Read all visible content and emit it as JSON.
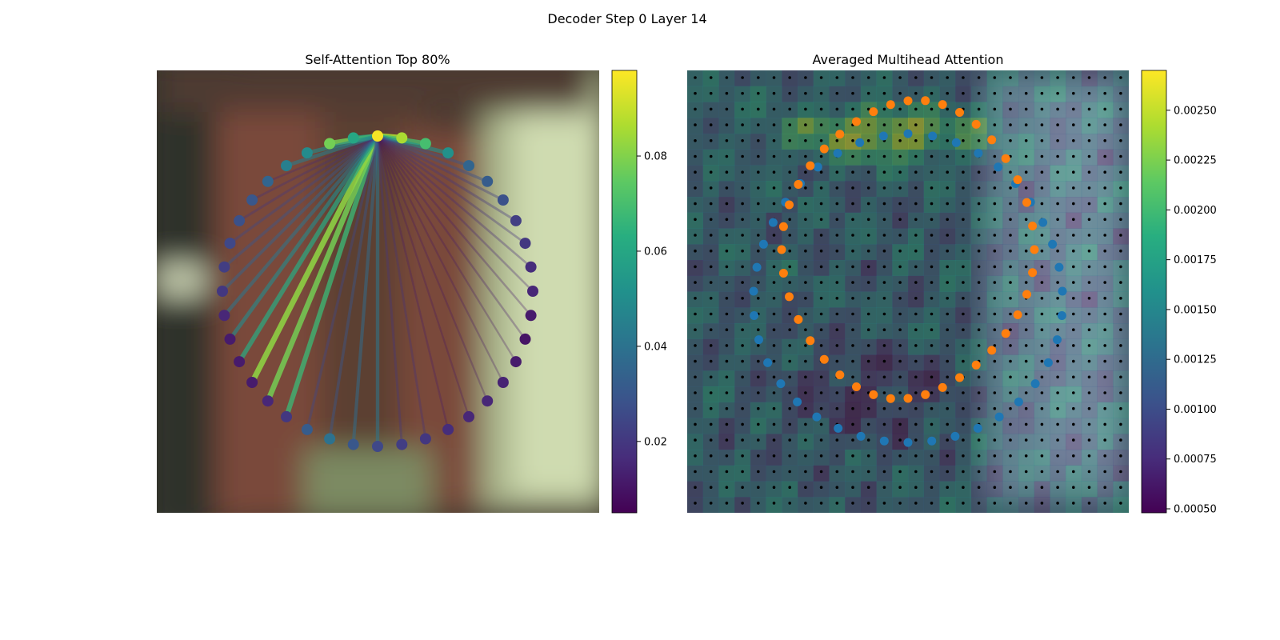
{
  "figure": {
    "title": "Decoder Step 0 Layer 14"
  },
  "chart_data": [
    {
      "type": "scatter",
      "title": "Self-Attention Top 80%",
      "description_points": "40 contour points arranged on a ring; point color = attention weight; lines from the top point to others, colored by weight",
      "colormap": "viridis",
      "colorbar": {
        "range": [
          0.005,
          0.098
        ],
        "ticks": [
          "0.02",
          "0.04",
          "0.06",
          "0.08"
        ],
        "tick_values": [
          0.02,
          0.04,
          0.06,
          0.08
        ]
      },
      "points_weights": [
        0.097,
        0.086,
        0.07,
        0.052,
        0.035,
        0.032,
        0.028,
        0.022,
        0.02,
        0.017,
        0.015,
        0.012,
        0.01,
        0.012,
        0.014,
        0.015,
        0.015,
        0.017,
        0.02,
        0.022,
        0.025,
        0.03,
        0.04,
        0.032,
        0.02,
        0.015,
        0.012,
        0.012,
        0.012,
        0.015,
        0.02,
        0.022,
        0.025,
        0.028,
        0.03,
        0.035,
        0.045,
        0.05,
        0.078,
        0.06
      ],
      "line_targets": [
        1,
        2,
        3,
        38,
        39,
        24,
        25,
        26,
        27,
        28,
        29,
        30,
        31,
        32,
        33,
        34,
        35,
        36,
        37,
        20,
        21,
        22,
        23,
        19,
        18,
        17,
        16,
        15,
        14,
        13,
        12,
        4,
        5,
        6,
        7,
        8,
        9,
        10,
        11
      ],
      "line_weights": [
        0.086,
        0.07,
        0.052,
        0.078,
        0.06,
        0.068,
        0.078,
        0.082,
        0.062,
        0.05,
        0.042,
        0.035,
        0.03,
        0.025,
        0.02,
        0.018,
        0.015,
        0.045,
        0.05,
        0.042,
        0.038,
        0.03,
        0.025,
        0.02,
        0.018,
        0.012,
        0.01,
        0.01,
        0.01,
        0.01,
        0.012,
        0.03,
        0.028,
        0.022,
        0.02,
        0.018,
        0.016,
        0.014,
        0.012
      ]
    },
    {
      "type": "heatmap",
      "title": "Averaged Multihead Attention",
      "grid_size": [
        28,
        28
      ],
      "colormap": "viridis",
      "colorbar": {
        "range": [
          0.00048,
          0.0027
        ],
        "ticks": [
          "0.00050",
          "0.00075",
          "0.00100",
          "0.00125",
          "0.00150",
          "0.00175",
          "0.00200",
          "0.00225",
          "0.00250"
        ],
        "tick_values": [
          0.0005,
          0.00075,
          0.001,
          0.00125,
          0.0015,
          0.00175,
          0.002,
          0.00225,
          0.0025
        ]
      },
      "series": [
        {
          "name": "",
          "color": "#1f77b4"
        },
        {
          "name": "",
          "color": "#ff7f0e"
        },
        {
          "name": "",
          "color": "#000000"
        }
      ]
    }
  ]
}
